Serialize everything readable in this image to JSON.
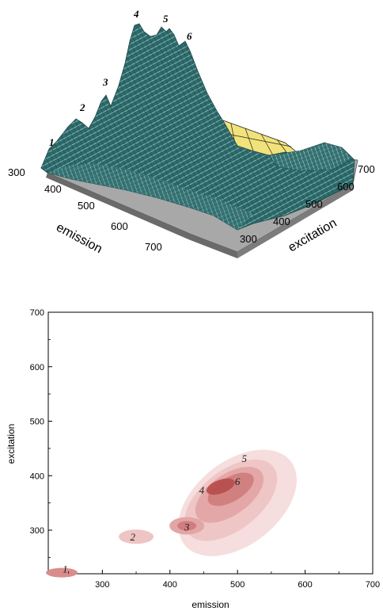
{
  "chart_data": [
    {
      "type": "surface3d",
      "xlabel": "emission",
      "ylabel": "excitation",
      "x_ticks": [
        "300",
        "400",
        "500",
        "600",
        "700"
      ],
      "y_ticks": [
        "300",
        "400",
        "500",
        "600",
        "700"
      ],
      "peak_labels": [
        "1",
        "2",
        "3",
        "4",
        "5",
        "6"
      ],
      "colors": {
        "surface": "#2f6a6a",
        "mesh": "#a8e0e0",
        "floor": "#9a9a9a",
        "projection": "#f2e27a"
      }
    },
    {
      "type": "contour",
      "xlabel": "emission",
      "ylabel": "excitation",
      "xlim": [
        220,
        700
      ],
      "ylim": [
        220,
        700
      ],
      "x_ticks": [
        "300",
        "400",
        "500",
        "600",
        "700"
      ],
      "y_ticks": [
        "300",
        "400",
        "500",
        "600",
        "700"
      ],
      "peaks": [
        {
          "label": "1",
          "emission": 245,
          "excitation": 228
        },
        {
          "label": "2",
          "emission": 345,
          "excitation": 287
        },
        {
          "label": "3",
          "emission": 425,
          "excitation": 305
        },
        {
          "label": "4",
          "emission": 447,
          "excitation": 373
        },
        {
          "label": "5",
          "emission": 510,
          "excitation": 431
        },
        {
          "label": "6",
          "emission": 500,
          "excitation": 389
        }
      ],
      "colors": {
        "lowest": "#f6dcdc",
        "highest": "#a52a2a"
      }
    }
  ]
}
